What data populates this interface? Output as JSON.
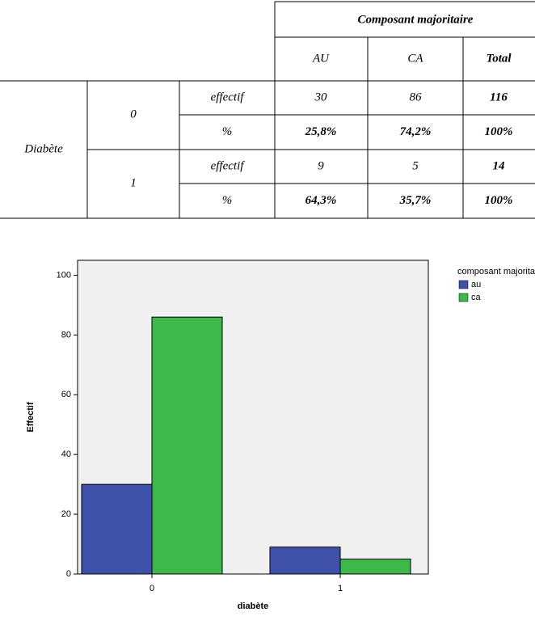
{
  "table": {
    "header": "Composant majoritaire",
    "columns": [
      "AU",
      "CA",
      "Total"
    ],
    "row_label": "Diabète",
    "groups": [
      {
        "label": "0",
        "rows": [
          [
            "effectif",
            "30",
            "86",
            "116"
          ],
          [
            "%",
            "25,8%",
            "74,2%",
            "100%"
          ]
        ]
      },
      {
        "label": "1",
        "rows": [
          [
            "effectif",
            "9",
            "5",
            "14"
          ],
          [
            "%",
            "64,3%",
            "35,7%",
            "100%"
          ]
        ]
      }
    ]
  },
  "chart_data": {
    "type": "bar",
    "categories": [
      "0",
      "1"
    ],
    "series": [
      {
        "name": "au",
        "color": "#3f51a8",
        "values": [
          30,
          9
        ]
      },
      {
        "name": "ca",
        "color": "#3cb94a",
        "values": [
          86,
          5
        ]
      }
    ],
    "xlabel": "diabète",
    "ylabel": "Effectif",
    "legend_title": "composant majoritaire",
    "legend": "right",
    "ylim": [
      0,
      105
    ],
    "yticks": [
      0,
      20,
      40,
      60,
      80,
      100
    ],
    "grid": false
  }
}
